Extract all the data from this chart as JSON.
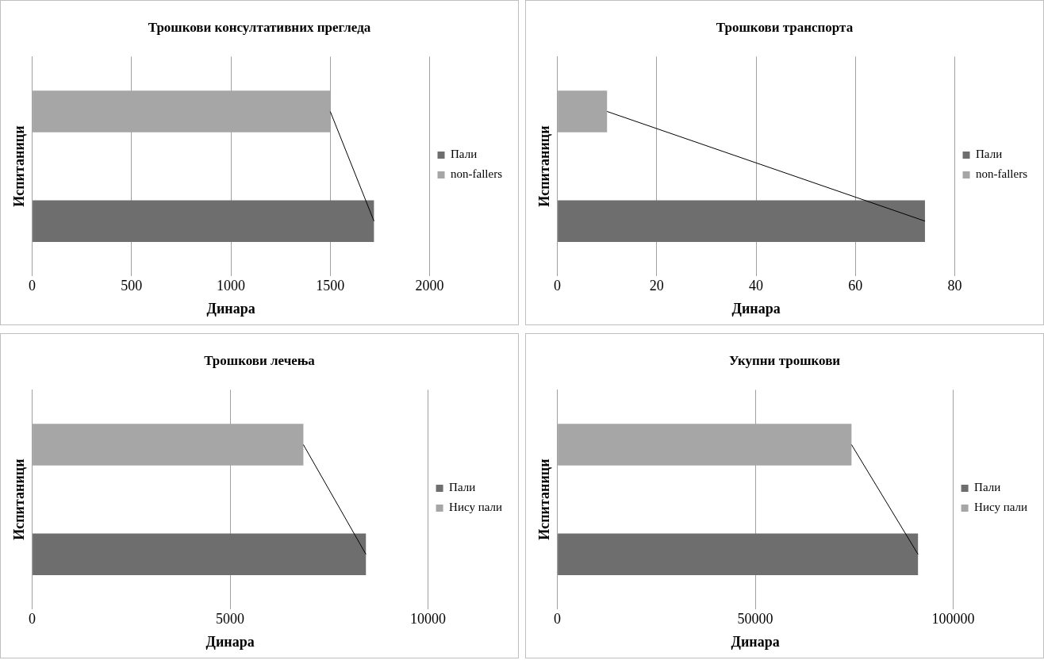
{
  "chart_data": [
    {
      "type": "bar",
      "orientation": "horizontal",
      "stacked": true,
      "title": "Трошкови консултативних прегледа",
      "xlabel": "Динара",
      "ylabel": "Испитаници",
      "categories": [
        null,
        null
      ],
      "series": [
        {
          "name": "Пали",
          "color": "#6e6e6e",
          "values": [
            null,
            1720
          ]
        },
        {
          "name": "non-fallers",
          "color": "#a6a6a6",
          "values": [
            1500,
            null
          ]
        },
        {
          "type": "line",
          "color": "#000000",
          "values": [
            1500,
            1720
          ]
        }
      ],
      "xlim": [
        0,
        2000
      ],
      "xticks": [
        0,
        500,
        1000,
        1500,
        2000
      ],
      "grid": "x",
      "legend": "right",
      "tick_labels": "x",
      "marker": "none"
    },
    {
      "type": "bar",
      "orientation": "horizontal",
      "stacked": true,
      "title": "Трошкови транспорта",
      "xlabel": "Динара",
      "ylabel": "Испитаници",
      "categories": [
        null,
        null
      ],
      "series": [
        {
          "name": "Пали",
          "color": "#6e6e6e",
          "values": [
            null,
            74
          ]
        },
        {
          "name": "non-fallers",
          "color": "#a6a6a6",
          "values": [
            10,
            null
          ]
        },
        {
          "type": "line",
          "color": "#000000",
          "values": [
            10,
            74
          ]
        }
      ],
      "xlim": [
        0,
        80
      ],
      "xticks": [
        0,
        20,
        40,
        60,
        80
      ],
      "grid": "x",
      "legend": "right",
      "tick_labels": "x",
      "marker": "none"
    },
    {
      "type": "bar",
      "orientation": "horizontal",
      "stacked": true,
      "title": "Трошкови лечења",
      "xlabel": "Динара",
      "ylabel": "Испитаници",
      "categories": [
        null,
        null
      ],
      "series": [
        {
          "name": "Пали",
          "color": "#6e6e6e",
          "values": [
            null,
            8430
          ]
        },
        {
          "name": "Нису пали",
          "color": "#a6a6a6",
          "values": [
            6850,
            null
          ]
        },
        {
          "type": "line",
          "color": "#000000",
          "values": [
            6850,
            8430
          ]
        }
      ],
      "xlim": [
        0,
        10000
      ],
      "xticks": [
        0,
        5000,
        10000
      ],
      "grid": "x",
      "legend": "right",
      "tick_labels": "x",
      "marker": "none"
    },
    {
      "type": "bar",
      "orientation": "horizontal",
      "stacked": true,
      "title": "Укупни трошкови",
      "xlabel": "Динара",
      "ylabel": "Испитаници",
      "categories": [
        null,
        null
      ],
      "series": [
        {
          "name": "Пали",
          "color": "#6e6e6e",
          "values": [
            null,
            91100
          ]
        },
        {
          "name": "Нису пали",
          "color": "#a6a6a6",
          "values": [
            74300,
            null
          ]
        },
        {
          "type": "line",
          "color": "#000000",
          "values": [
            74300,
            91100
          ]
        }
      ],
      "xlim": [
        0,
        100000
      ],
      "xticks": [
        0,
        50000,
        100000
      ],
      "grid": "x",
      "legend": "right",
      "tick_labels": "x",
      "marker": "none"
    }
  ]
}
